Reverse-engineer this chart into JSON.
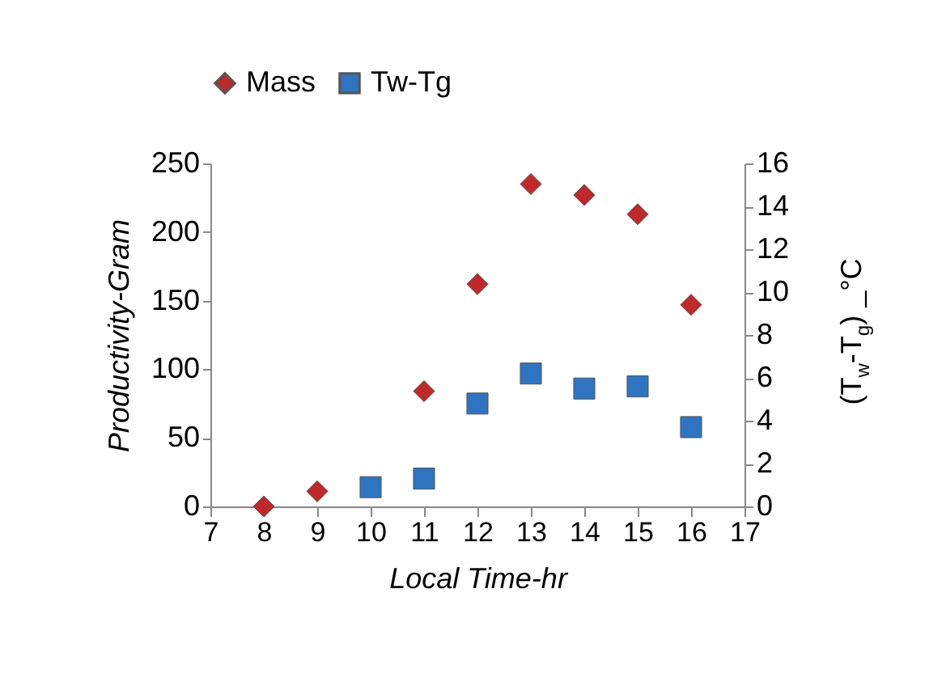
{
  "chart_data": {
    "type": "scatter",
    "xlabel": "Local Time-hr",
    "ylabel": "Productivity-Gram",
    "y2label": "(T$_{w}$-T$_{g}$) _°C",
    "x": [
      8,
      9,
      10,
      11,
      12,
      13,
      14,
      15,
      16
    ],
    "series": [
      {
        "name": "Mass",
        "color": "#c0282a",
        "marker": "diamond",
        "values": [
          0,
          11,
          null,
          84,
          162,
          235,
          227,
          213,
          147
        ]
      },
      {
        "name": "Tw-Tg",
        "color": "#2f74c0",
        "marker": "square",
        "axis": "y2",
        "values": [
          null,
          null,
          0.9,
          1.3,
          4.8,
          6.2,
          5.5,
          5.6,
          3.7
        ]
      }
    ],
    "xlim": [
      7,
      17
    ],
    "xticks": [
      7,
      8,
      9,
      10,
      11,
      12,
      13,
      14,
      15,
      16,
      17
    ],
    "ylim": [
      0,
      250
    ],
    "yticks": [
      0,
      50,
      100,
      150,
      200,
      250
    ],
    "y2lim": [
      0,
      16
    ],
    "y2ticks": [
      0,
      2,
      4,
      6,
      8,
      10,
      12,
      14,
      16
    ],
    "legend": "top"
  }
}
